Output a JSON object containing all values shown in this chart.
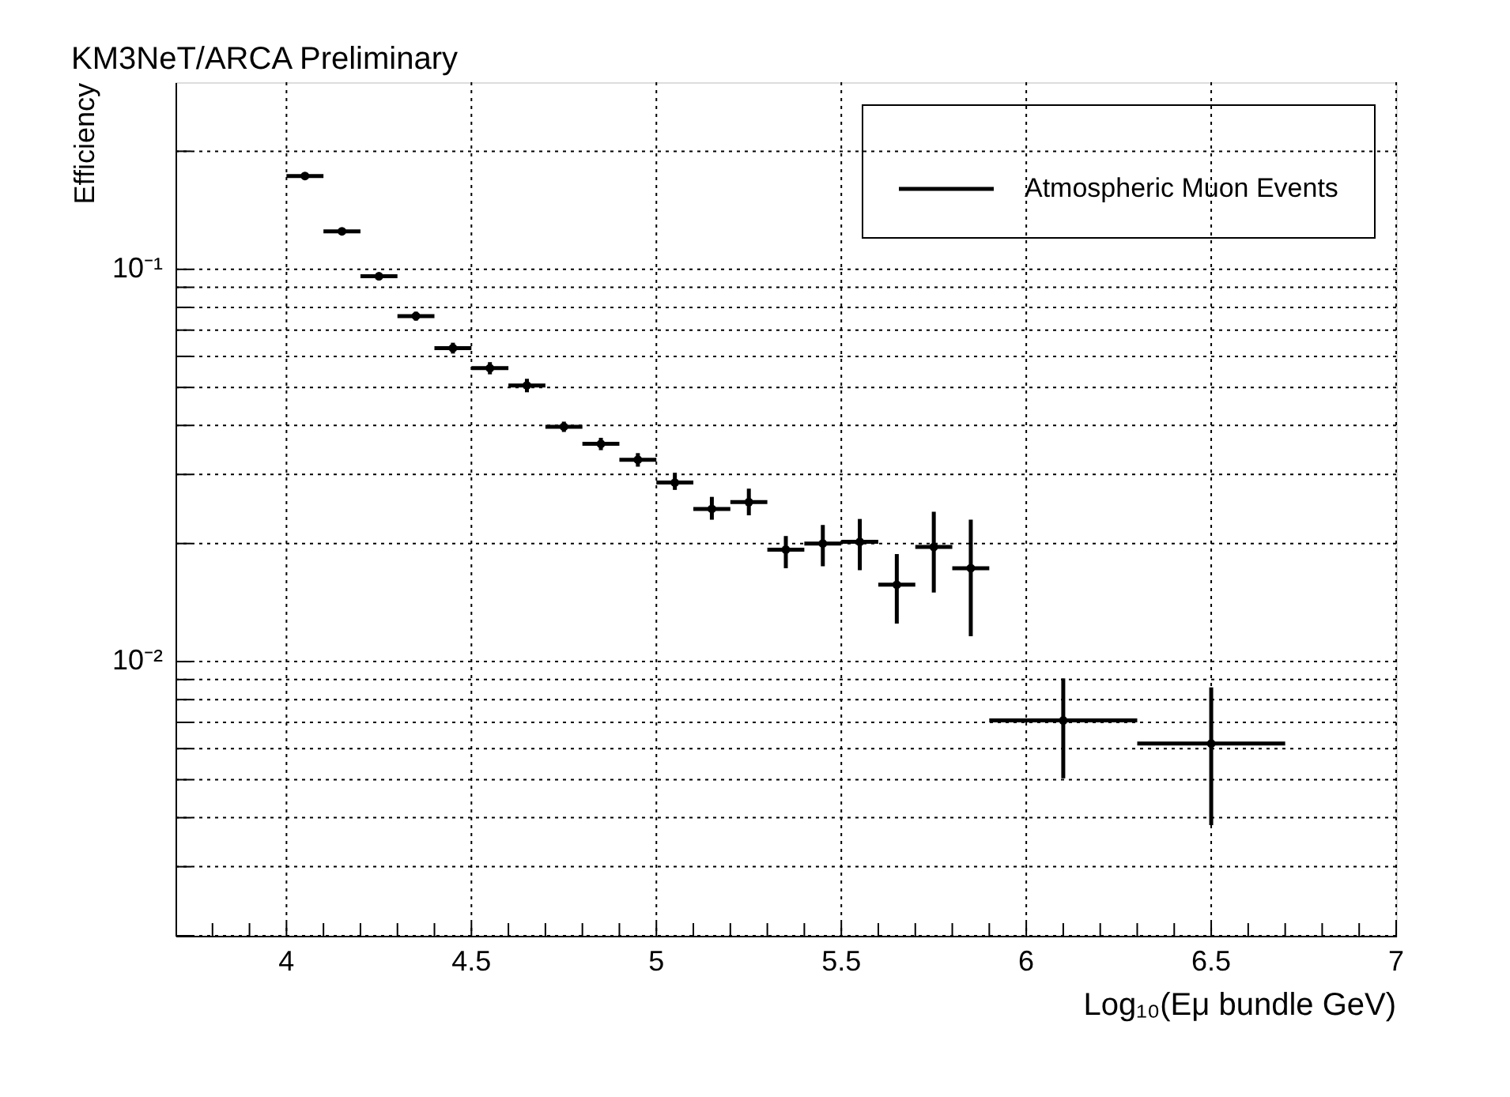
{
  "chart_data": {
    "type": "scatter",
    "title": "KM3NeT/ARCA Preliminary",
    "xlabel": "Log₁₀(Eμ bundle GeV)",
    "ylabel": "Efficiency",
    "x": [
      4.05,
      4.15,
      4.25,
      4.35,
      4.45,
      4.55,
      4.65,
      4.75,
      4.85,
      4.95,
      5.05,
      5.15,
      5.25,
      5.35,
      5.45,
      5.55,
      5.65,
      5.75,
      5.85,
      6.1,
      6.5
    ],
    "series": [
      {
        "name": "Atmospheric Muon Events",
        "color": "#000000",
        "values": [
          0.173,
          0.125,
          0.096,
          0.076,
          0.063,
          0.056,
          0.0506,
          0.0397,
          0.0359,
          0.0327,
          0.0286,
          0.0245,
          0.0255,
          0.0193,
          0.02,
          0.0202,
          0.0157,
          0.0196,
          0.0173,
          0.00708,
          0.00618
        ],
        "errors": [
          0.002,
          0.002,
          0.002,
          0.002,
          0.002,
          0.002,
          0.002,
          0.0012,
          0.0013,
          0.0013,
          [
            0.0274,
            0.0303
          ],
          [
            0.023,
            0.0263
          ],
          [
            0.0236,
            0.0276
          ],
          [
            0.0173,
            0.0209
          ],
          [
            0.0175,
            0.0223
          ],
          [
            0.0171,
            0.0231
          ],
          [
            0.0125,
            0.0188
          ],
          [
            0.015,
            0.0241
          ],
          [
            0.0116,
            0.023
          ],
          [
            0.00504,
            0.00906
          ],
          [
            0.00383,
            0.00859
          ]
        ],
        "xerrors": [
          0.05,
          0.05,
          0.05,
          0.05,
          0.05,
          0.05,
          0.05,
          0.05,
          0.05,
          0.05,
          0.05,
          0.05,
          0.05,
          0.05,
          0.05,
          0.05,
          0.05,
          0.05,
          0.05,
          0.2,
          0.2
        ]
      }
    ],
    "xlim": [
      3.7,
      7
    ],
    "xticks": [
      {
        "value": 3.8,
        "label": null
      },
      {
        "value": 3.9,
        "label": null
      },
      4,
      {
        "value": 4.1,
        "label": null
      },
      {
        "value": 4.2,
        "label": null
      },
      {
        "value": 4.3,
        "label": null
      },
      {
        "value": 4.4,
        "label": null
      },
      4.5,
      {
        "value": 4.6,
        "label": null
      },
      {
        "value": 4.7,
        "label": null
      },
      {
        "value": 4.8,
        "label": null
      },
      {
        "value": 4.9,
        "label": null
      },
      5,
      {
        "value": 5.1,
        "label": null
      },
      {
        "value": 5.2,
        "label": null
      },
      {
        "value": 5.3,
        "label": null
      },
      {
        "value": 5.4,
        "label": null
      },
      5.5,
      {
        "value": 5.6,
        "label": null
      },
      {
        "value": 5.7,
        "label": null
      },
      {
        "value": 5.8,
        "label": null
      },
      {
        "value": 5.9,
        "label": null
      },
      6,
      {
        "value": 6.1,
        "label": null
      },
      {
        "value": 6.2,
        "label": null
      },
      {
        "value": 6.3,
        "label": null
      },
      {
        "value": 6.4,
        "label": null
      },
      6.5,
      {
        "value": 6.6,
        "label": null
      },
      {
        "value": 6.7,
        "label": null
      },
      {
        "value": 6.8,
        "label": null
      },
      {
        "value": 6.9,
        "label": null
      },
      7
    ],
    "ylim": [
      0.002,
      0.3
    ],
    "yticks": [
      {
        "value": 0.002,
        "label": null
      },
      {
        "value": 0.003,
        "label": null
      },
      {
        "value": 0.004,
        "label": null
      },
      {
        "value": 0.005,
        "label": null
      },
      {
        "value": 0.006,
        "label": null
      },
      {
        "value": 0.007,
        "label": null
      },
      {
        "value": 0.008,
        "label": null
      },
      {
        "value": 0.009,
        "label": null
      },
      {
        "value": 0.01,
        "label": "10⁻²"
      },
      {
        "value": 0.02,
        "label": null
      },
      {
        "value": 0.03,
        "label": null
      },
      {
        "value": 0.04,
        "label": null
      },
      {
        "value": 0.05,
        "label": null
      },
      {
        "value": 0.06,
        "label": null
      },
      {
        "value": 0.07,
        "label": null
      },
      {
        "value": 0.08,
        "label": null
      },
      {
        "value": 0.09,
        "label": null
      },
      {
        "value": 0.1,
        "label": "10⁻¹"
      },
      {
        "value": 0.2,
        "label": null
      }
    ],
    "log": true,
    "grid": true,
    "legend": "top right",
    "marker": "circle"
  }
}
